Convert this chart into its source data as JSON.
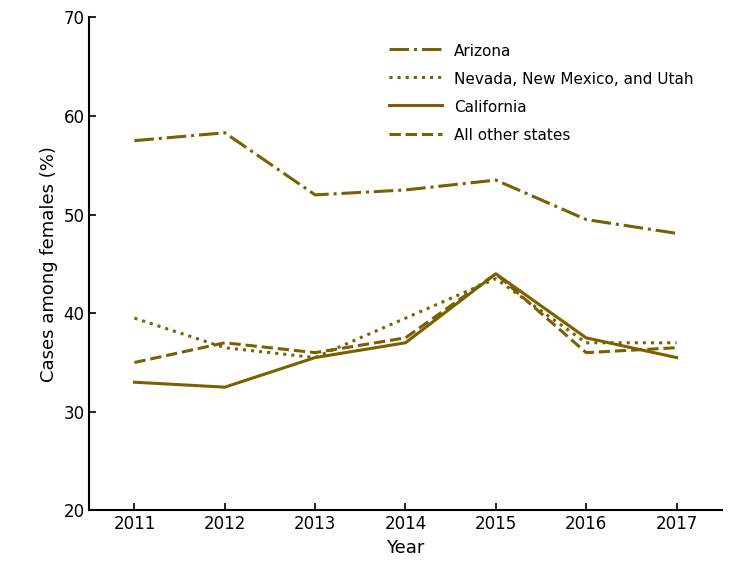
{
  "years": [
    2011,
    2012,
    2013,
    2014,
    2015,
    2016,
    2017
  ],
  "arizona": [
    57.5,
    58.3,
    52.0,
    52.5,
    53.5,
    49.5,
    48.1
  ],
  "nevada_nm_utah": [
    39.5,
    36.5,
    35.5,
    39.5,
    43.5,
    37.0,
    37.0
  ],
  "california": [
    33.0,
    32.5,
    35.5,
    37.0,
    44.0,
    37.5,
    35.5
  ],
  "all_other": [
    35.0,
    37.0,
    36.0,
    37.5,
    44.0,
    36.0,
    36.5
  ],
  "color": "#7a6000",
  "xlabel": "Year",
  "ylabel": "Cases among females (%)",
  "ylim": [
    20,
    70
  ],
  "yticks": [
    20,
    30,
    40,
    50,
    60,
    70
  ],
  "xlim": [
    2010.5,
    2017.5
  ],
  "legend_labels": [
    "Arizona",
    "Nevada, New Mexico, and Utah",
    "California",
    "All other states"
  ],
  "legend_styles": [
    "dashdot",
    "dotted",
    "solid",
    "dashed"
  ],
  "linewidth": 2.2
}
